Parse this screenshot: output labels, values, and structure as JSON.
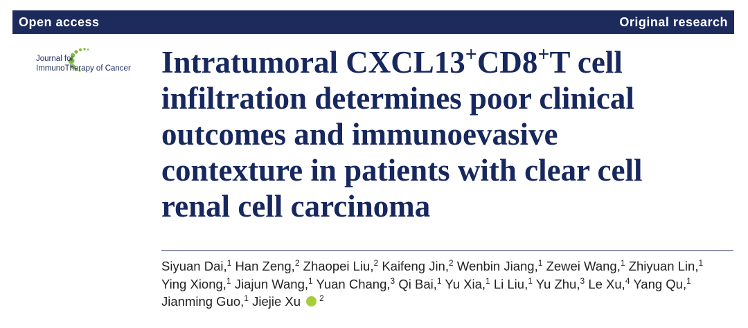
{
  "header": {
    "left": "Open access",
    "right": "Original research"
  },
  "journal": {
    "line1": "Journal for",
    "line2": "ImmunoTherapy of Cancer"
  },
  "title": {
    "parts": [
      {
        "text": "Intratumoral CXCL13",
        "sup": false
      },
      {
        "text": "+",
        "sup": true
      },
      {
        "text": "CD8",
        "sup": false
      },
      {
        "text": "+",
        "sup": true
      },
      {
        "text": "T cell infiltration determines poor clinical outcomes and immunoevasive contexture in patients with clear cell renal cell carcinoma",
        "sup": false
      }
    ]
  },
  "authors": [
    {
      "name": "Siyuan Dai,",
      "aff": "1"
    },
    {
      "name": "Han Zeng,",
      "aff": "2"
    },
    {
      "name": "Zhaopei Liu,",
      "aff": "2"
    },
    {
      "name": "Kaifeng Jin,",
      "aff": "2"
    },
    {
      "name": "Wenbin Jiang,",
      "aff": "1"
    },
    {
      "name": "Zewei Wang,",
      "aff": "1"
    },
    {
      "name": "Zhiyuan Lin,",
      "aff": "1"
    },
    {
      "name": "Ying Xiong,",
      "aff": "1"
    },
    {
      "name": "Jiajun Wang,",
      "aff": "1"
    },
    {
      "name": "Yuan Chang,",
      "aff": "3"
    },
    {
      "name": "Qi Bai,",
      "aff": "1"
    },
    {
      "name": "Yu Xia,",
      "aff": "1"
    },
    {
      "name": "Li Liu,",
      "aff": "1"
    },
    {
      "name": "Yu Zhu,",
      "aff": "3"
    },
    {
      "name": "Le Xu,",
      "aff": "4"
    },
    {
      "name": "Yang Qu,",
      "aff": "1"
    },
    {
      "name": "Jianming Guo,",
      "aff": "1"
    },
    {
      "name": "Jiejie Xu",
      "aff": "2",
      "orcid": true
    }
  ]
}
